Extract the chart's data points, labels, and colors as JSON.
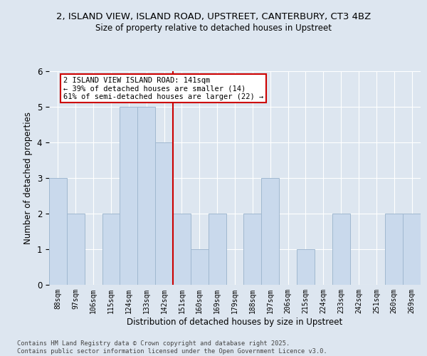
{
  "title1": "2, ISLAND VIEW, ISLAND ROAD, UPSTREET, CANTERBURY, CT3 4BZ",
  "title2": "Size of property relative to detached houses in Upstreet",
  "xlabel": "Distribution of detached houses by size in Upstreet",
  "ylabel": "Number of detached properties",
  "bin_labels": [
    "88sqm",
    "97sqm",
    "106sqm",
    "115sqm",
    "124sqm",
    "133sqm",
    "142sqm",
    "151sqm",
    "160sqm",
    "169sqm",
    "179sqm",
    "188sqm",
    "197sqm",
    "206sqm",
    "215sqm",
    "224sqm",
    "233sqm",
    "242sqm",
    "251sqm",
    "260sqm",
    "269sqm"
  ],
  "bar_values": [
    3,
    2,
    0,
    2,
    5,
    5,
    4,
    2,
    1,
    2,
    0,
    2,
    3,
    0,
    1,
    0,
    2,
    0,
    0,
    2,
    2
  ],
  "bar_color": "#c9d9ec",
  "bar_edge_color": "#a0b8d0",
  "vline_index": 6,
  "annotation_lines": [
    "2 ISLAND VIEW ISLAND ROAD: 141sqm",
    "← 39% of detached houses are smaller (14)",
    "61% of semi-detached houses are larger (22) →"
  ],
  "annotation_box_color": "#ffffff",
  "annotation_box_edge": "#cc0000",
  "vline_color": "#cc0000",
  "background_color": "#dde6f0",
  "ylim": [
    0,
    6
  ],
  "footer_text": "Contains HM Land Registry data © Crown copyright and database right 2025.\nContains public sector information licensed under the Open Government Licence v3.0."
}
